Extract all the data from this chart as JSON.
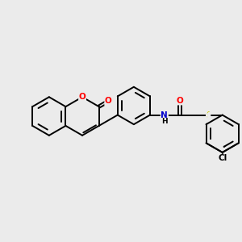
{
  "background_color": "#ebebeb",
  "bond_color": "#000000",
  "atom_colors": {
    "O": "#ff0000",
    "N": "#0000cc",
    "S": "#cccc00",
    "Cl": "#000000",
    "H": "#000000",
    "C": "#000000"
  },
  "figsize": [
    3.0,
    3.0
  ],
  "dpi": 100,
  "xlim": [
    0,
    10
  ],
  "ylim": [
    0,
    10
  ]
}
